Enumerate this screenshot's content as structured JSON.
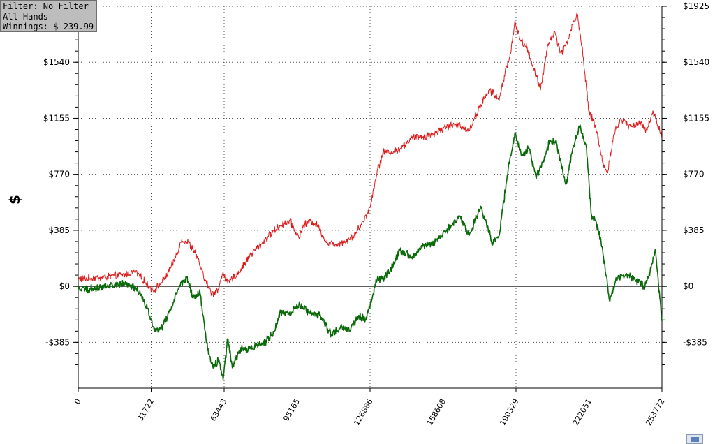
{
  "info_box": {
    "filter": "Filter: No Filter",
    "hands": "All Hands",
    "winnings": "Winnings: $-239.99"
  },
  "colors": {
    "red_series": "#dd1c1c",
    "green_series": "#0a6a0a",
    "zero_line": "#000000",
    "grid": "#555555",
    "button": "#5b7fb8"
  },
  "icons": {
    "corner_button": "window-icon"
  },
  "chart_data": {
    "type": "line",
    "ylabel": "$",
    "xlabel": "",
    "title": "",
    "xlim": [
      0,
      253772
    ],
    "ylim": [
      -700,
      1925
    ],
    "x_ticks": [
      "0",
      "31722",
      "63443",
      "95165",
      "126886",
      "158608",
      "190329",
      "222051",
      "253772"
    ],
    "y_ticks": [
      {
        "value": 1925,
        "label": "$1925"
      },
      {
        "value": 1540,
        "label": "$1540"
      },
      {
        "value": 1155,
        "label": "$1155"
      },
      {
        "value": 770,
        "label": "$770"
      },
      {
        "value": 385,
        "label": "$385"
      },
      {
        "value": 0,
        "label": "$0"
      },
      {
        "value": -385,
        "label": "-$385"
      }
    ],
    "grid": true,
    "series": [
      {
        "color": "#dd1c1c",
        "x": [
          0,
          10000,
          20000,
          25000,
          29000,
          33000,
          37000,
          41000,
          45000,
          48000,
          51000,
          55000,
          58000,
          61000,
          63000,
          65000,
          70000,
          75000,
          80000,
          85000,
          88000,
          92000,
          96000,
          98000,
          101000,
          104000,
          108000,
          112000,
          116000,
          120000,
          124000,
          127000,
          130000,
          133000,
          137000,
          141000,
          145000,
          150000,
          155000,
          160000,
          166000,
          170000,
          175000,
          179000,
          183000,
          186000,
          188000,
          190000,
          192000,
          195000,
          198000,
          201000,
          204000,
          207000,
          210000,
          213000,
          215000,
          217000,
          219000,
          222000,
          225000,
          228000,
          230000,
          233000,
          236000,
          240000,
          244000,
          247000,
          250000,
          253772
        ],
        "y": [
          50,
          60,
          80,
          100,
          30,
          -30,
          40,
          150,
          320,
          300,
          230,
          50,
          -50,
          -20,
          100,
          20,
          100,
          220,
          300,
          380,
          420,
          450,
          330,
          420,
          450,
          420,
          300,
          290,
          310,
          350,
          450,
          550,
          800,
          930,
          920,
          960,
          1020,
          1030,
          1050,
          1100,
          1110,
          1070,
          1250,
          1350,
          1280,
          1500,
          1600,
          1820,
          1700,
          1640,
          1500,
          1350,
          1650,
          1750,
          1600,
          1700,
          1800,
          1870,
          1650,
          1200,
          1100,
          850,
          780,
          1050,
          1150,
          1100,
          1120,
          1080,
          1200,
          1030
        ]
      },
      {
        "color": "#0a6a0a",
        "x": [
          0,
          10000,
          20000,
          24000,
          27000,
          30000,
          33000,
          36000,
          40000,
          44000,
          47000,
          50000,
          53000,
          55000,
          57000,
          59000,
          61000,
          63000,
          65000,
          67000,
          70000,
          75000,
          80000,
          85000,
          88000,
          92000,
          96000,
          100000,
          105000,
          110000,
          114000,
          118000,
          122000,
          125000,
          127000,
          130000,
          133000,
          136000,
          140000,
          145000,
          150000,
          155000,
          160000,
          166000,
          170000,
          175000,
          177000,
          180000,
          183000,
          186000,
          188000,
          190000,
          193000,
          196000,
          199000,
          202000,
          205000,
          208000,
          212000,
          215000,
          218000,
          221000,
          223000,
          226000,
          228000,
          231000,
          234000,
          238000,
          242000,
          246000,
          249000,
          251000,
          253772
        ],
        "y": [
          -20,
          -10,
          20,
          0,
          -50,
          -150,
          -300,
          -290,
          -170,
          0,
          60,
          -80,
          -50,
          -300,
          -480,
          -560,
          -500,
          -640,
          -360,
          -560,
          -440,
          -420,
          -400,
          -320,
          -180,
          -200,
          -120,
          -180,
          -200,
          -330,
          -280,
          -300,
          -200,
          -230,
          -120,
          50,
          60,
          120,
          250,
          200,
          280,
          300,
          380,
          480,
          350,
          550,
          450,
          300,
          350,
          700,
          900,
          1050,
          900,
          950,
          750,
          850,
          1000,
          980,
          700,
          950,
          1100,
          950,
          500,
          400,
          250,
          -100,
          50,
          80,
          50,
          0,
          120,
          250,
          -240
        ]
      }
    ]
  }
}
